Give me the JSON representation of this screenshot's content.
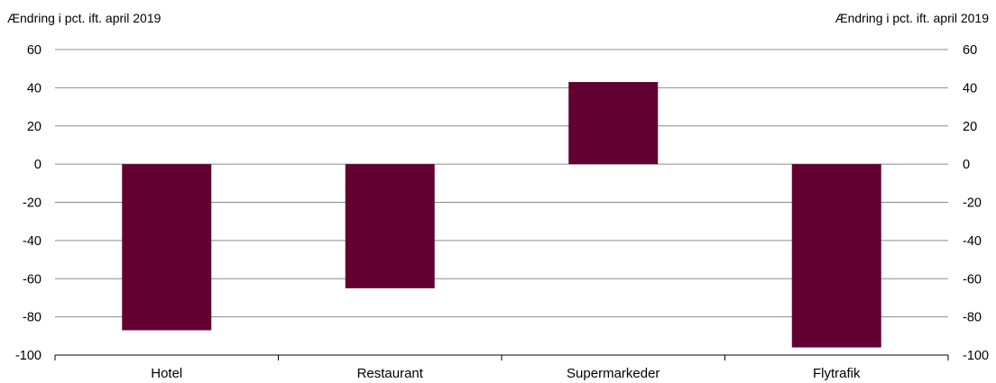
{
  "chart_data": {
    "type": "bar",
    "title": "",
    "y_unit_left": "Ændring i pct. ift. april 2019",
    "y_unit_right": "Ændring i pct. ift. april 2019",
    "categories": [
      "Hotel",
      "Restaurant",
      "Supermarkeder",
      "Flytrafik"
    ],
    "values": [
      -87,
      -65,
      43,
      -96
    ],
    "ylim": [
      -100,
      60
    ],
    "yticks": [
      60,
      40,
      20,
      0,
      -20,
      -40,
      -60,
      -80,
      -100
    ],
    "ytick_labels": [
      "60",
      "40",
      "20",
      "0",
      "-20",
      "-40",
      "-60",
      "-80",
      "-100"
    ],
    "bar_color": "#620032",
    "grid": true,
    "legend": "none"
  }
}
